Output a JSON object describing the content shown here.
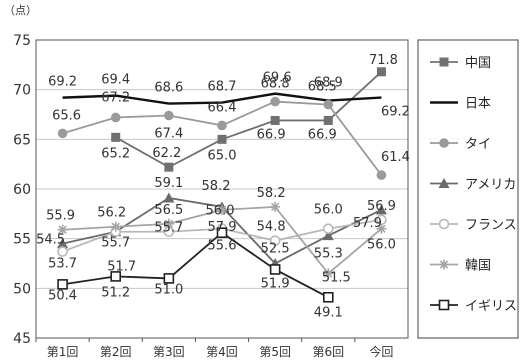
{
  "chart_data": {
    "type": "line",
    "unit_label": "（点）",
    "categories": [
      "第1回",
      "第2回",
      "第3回",
      "第4回",
      "第5回",
      "第6回",
      "今回"
    ],
    "ylim": [
      45,
      75
    ],
    "yticks": [
      45,
      50,
      55,
      60,
      65,
      70,
      75
    ],
    "grid": "horizontal",
    "legend_position": "right",
    "series": [
      {
        "name": "中国",
        "values": [
          null,
          65.2,
          62.2,
          65.0,
          66.9,
          66.9,
          71.8
        ],
        "labels": [
          "",
          "65.2",
          "62.2",
          "65.0",
          "66.9",
          "66.9",
          "71.8"
        ],
        "color": "#707070",
        "marker": "square-filled"
      },
      {
        "name": "日本",
        "values": [
          69.2,
          69.4,
          68.6,
          68.7,
          69.6,
          68.9,
          69.2
        ],
        "labels": [
          "69.2",
          "69.4",
          "68.6",
          "68.7",
          "69.6",
          "68.9",
          "69.2"
        ],
        "color": "#111111",
        "marker": "none"
      },
      {
        "name": "タイ",
        "values": [
          65.6,
          67.2,
          67.4,
          66.4,
          68.8,
          68.5,
          61.4
        ],
        "labels": [
          "65.6",
          "67.2",
          "67.4",
          "66.4",
          "68.8",
          "68.5",
          "61.4"
        ],
        "color": "#9a9a9a",
        "marker": "circle-filled"
      },
      {
        "name": "アメリカ",
        "values": [
          54.5,
          55.7,
          59.1,
          58.2,
          52.5,
          55.3,
          57.9
        ],
        "labels": [
          "54.5",
          "55.7",
          "59.1",
          "58.2",
          "52.5",
          "55.3",
          "57.9"
        ],
        "color": "#6a6a6a",
        "marker": "triangle-filled"
      },
      {
        "name": "フランス",
        "values": [
          53.7,
          55.7,
          55.7,
          56.0,
          54.8,
          56.0,
          56.9
        ],
        "labels": [
          "53.7",
          "",
          "55.7",
          "56.0",
          "54.8",
          "56.0",
          "56.9"
        ],
        "color": "#b8b8b8",
        "marker": "circle-open"
      },
      {
        "name": "韓国",
        "values": [
          55.9,
          56.2,
          56.5,
          57.9,
          58.2,
          51.5,
          56.0
        ],
        "labels": [
          "55.9",
          "56.2",
          "56.5",
          "57.9",
          "58.2",
          "51.5",
          "56.0"
        ],
        "color": "#a5a5a5",
        "marker": "asterisk"
      },
      {
        "name": "イギリス",
        "values": [
          50.4,
          51.2,
          51.0,
          55.6,
          51.9,
          49.1,
          null
        ],
        "labels": [
          "50.4",
          "51.2",
          "51.0",
          "55.6",
          "51.9",
          "49.1",
          ""
        ],
        "color": "#222222",
        "marker": "square-open"
      }
    ],
    "extra_labels": [
      {
        "text": "51.7",
        "x_index": 1,
        "y": 52.2
      }
    ]
  }
}
